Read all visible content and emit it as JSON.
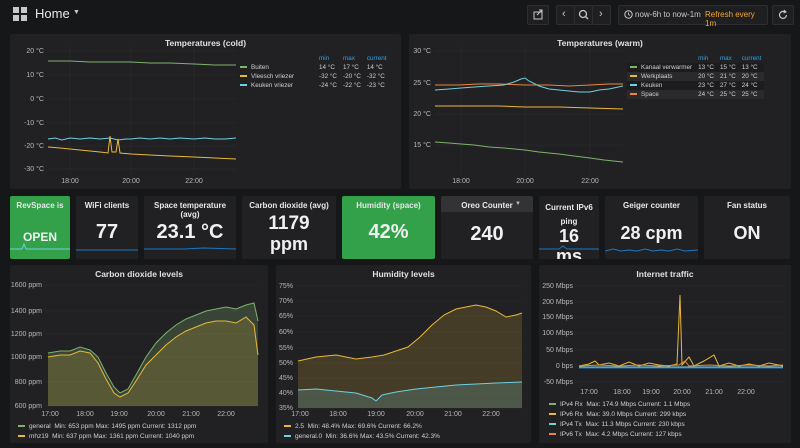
{
  "topbar": {
    "title": "Home",
    "time_range": "now-6h to now-1m",
    "refresh": "Refresh every 1m"
  },
  "colors": {
    "green": "#7eb26d",
    "yellow": "#eab839",
    "blue": "#6ed0e0",
    "orange": "#ef843c",
    "accent": "#f3a72c",
    "stat_green": "#33a04a"
  },
  "panels": {
    "temp_cold": {
      "title": "Temperatures (cold)",
      "headers": [
        "min",
        "max",
        "current"
      ],
      "rows": [
        {
          "name": "Buiten",
          "min": "14 °C",
          "max": "17 °C",
          "current": "14 °C"
        },
        {
          "name": "Vleesch vriezer",
          "min": "-32 °C",
          "max": "-20 °C",
          "current": "-32 °C"
        },
        {
          "name": "Keuken vriezer",
          "min": "-24 °C",
          "max": "-22 °C",
          "current": "-23 °C"
        }
      ],
      "yticks": [
        "20 °C",
        "10 °C",
        "0 °C",
        "-10 °C",
        "-20 °C",
        "-30 °C"
      ],
      "xticks": [
        "18:00",
        "20:00",
        "22:00"
      ]
    },
    "temp_warm": {
      "title": "Temperatures (warm)",
      "headers": [
        "min",
        "max",
        "current"
      ],
      "rows": [
        {
          "name": "Kanaal verwarmer",
          "min": "13 °C",
          "max": "15 °C",
          "current": "13 °C"
        },
        {
          "name": "Werkplaats",
          "min": "20 °C",
          "max": "21 °C",
          "current": "20 °C"
        },
        {
          "name": "Keuken",
          "min": "23 °C",
          "max": "27 °C",
          "current": "24 °C"
        },
        {
          "name": "Space",
          "min": "24 °C",
          "max": "25 °C",
          "current": "25 °C"
        }
      ],
      "yticks": [
        "30 °C",
        "25 °C",
        "20 °C",
        "15 °C"
      ],
      "xticks": [
        "18:00",
        "20:00",
        "22:00"
      ]
    },
    "stats": [
      {
        "title": "RevSpace is",
        "value": "OPEN"
      },
      {
        "title": "WiFi clients",
        "value": "77"
      },
      {
        "title": "Space temperature (avg)",
        "value": "23.1 °C"
      },
      {
        "title": "Carbon dioxide (avg)",
        "value": "1179",
        "value2": "ppm"
      },
      {
        "title": "Humidity (space)",
        "value": "42%"
      },
      {
        "title": "Oreo Counter",
        "value": "240"
      },
      {
        "title": "Current IPv6 ping",
        "value": "16",
        "value2": "ms"
      },
      {
        "title": "Geiger counter",
        "value": "28 cpm"
      },
      {
        "title": "Fan status",
        "value": "ON"
      }
    ],
    "co2": {
      "title": "Carbon dioxide levels",
      "yticks": [
        "1600 ppm",
        "1400 ppm",
        "1200 ppm",
        "1000 ppm",
        "800 ppm",
        "600 ppm"
      ],
      "xticks": [
        "17:00",
        "18:00",
        "19:00",
        "20:00",
        "21:00",
        "22:00"
      ],
      "legend": [
        {
          "name": "general",
          "stats": "Min: 653 ppm   Max: 1495 ppm   Current: 1312 ppm"
        },
        {
          "name": "mhz19",
          "stats": "Min: 637 ppm   Max: 1361 ppm   Current: 1040 ppm"
        }
      ]
    },
    "humidity": {
      "title": "Humidity levels",
      "yticks": [
        "75%",
        "70%",
        "65%",
        "60%",
        "55%",
        "50%",
        "45%",
        "40%",
        "35%"
      ],
      "xticks": [
        "17:00",
        "18:00",
        "19:00",
        "20:00",
        "21:00",
        "22:00"
      ],
      "legend": [
        {
          "name": "2.5",
          "stats": "Min: 48.4%   Max: 69.6%   Current: 66.2%"
        },
        {
          "name": "general.0",
          "stats": "Min: 36.6%   Max: 43.5%   Current: 42.3%"
        }
      ]
    },
    "traffic": {
      "title": "Internet traffic",
      "yticks": [
        "250 Mbps",
        "200 Mbps",
        "150 Mbps",
        "100 Mbps",
        "50 Mbps",
        "0 bps",
        "-50 Mbps"
      ],
      "xticks": [
        "17:00",
        "18:00",
        "19:00",
        "20:00",
        "21:00",
        "22:00"
      ],
      "legend": [
        {
          "name": "IPv4 Rx",
          "stats": "Max: 174.9 Mbps   Current: 1.1 Mbps"
        },
        {
          "name": "IPv6 Rx",
          "stats": "Max: 39.0 Mbps   Current: 299 kbps"
        },
        {
          "name": "IPv4 Tx",
          "stats": "Max: 11.3 Mbps   Current: 230 kbps"
        },
        {
          "name": "IPv6 Tx",
          "stats": "Max: 4.2 Mbps   Current: 127 kbps"
        }
      ]
    }
  }
}
